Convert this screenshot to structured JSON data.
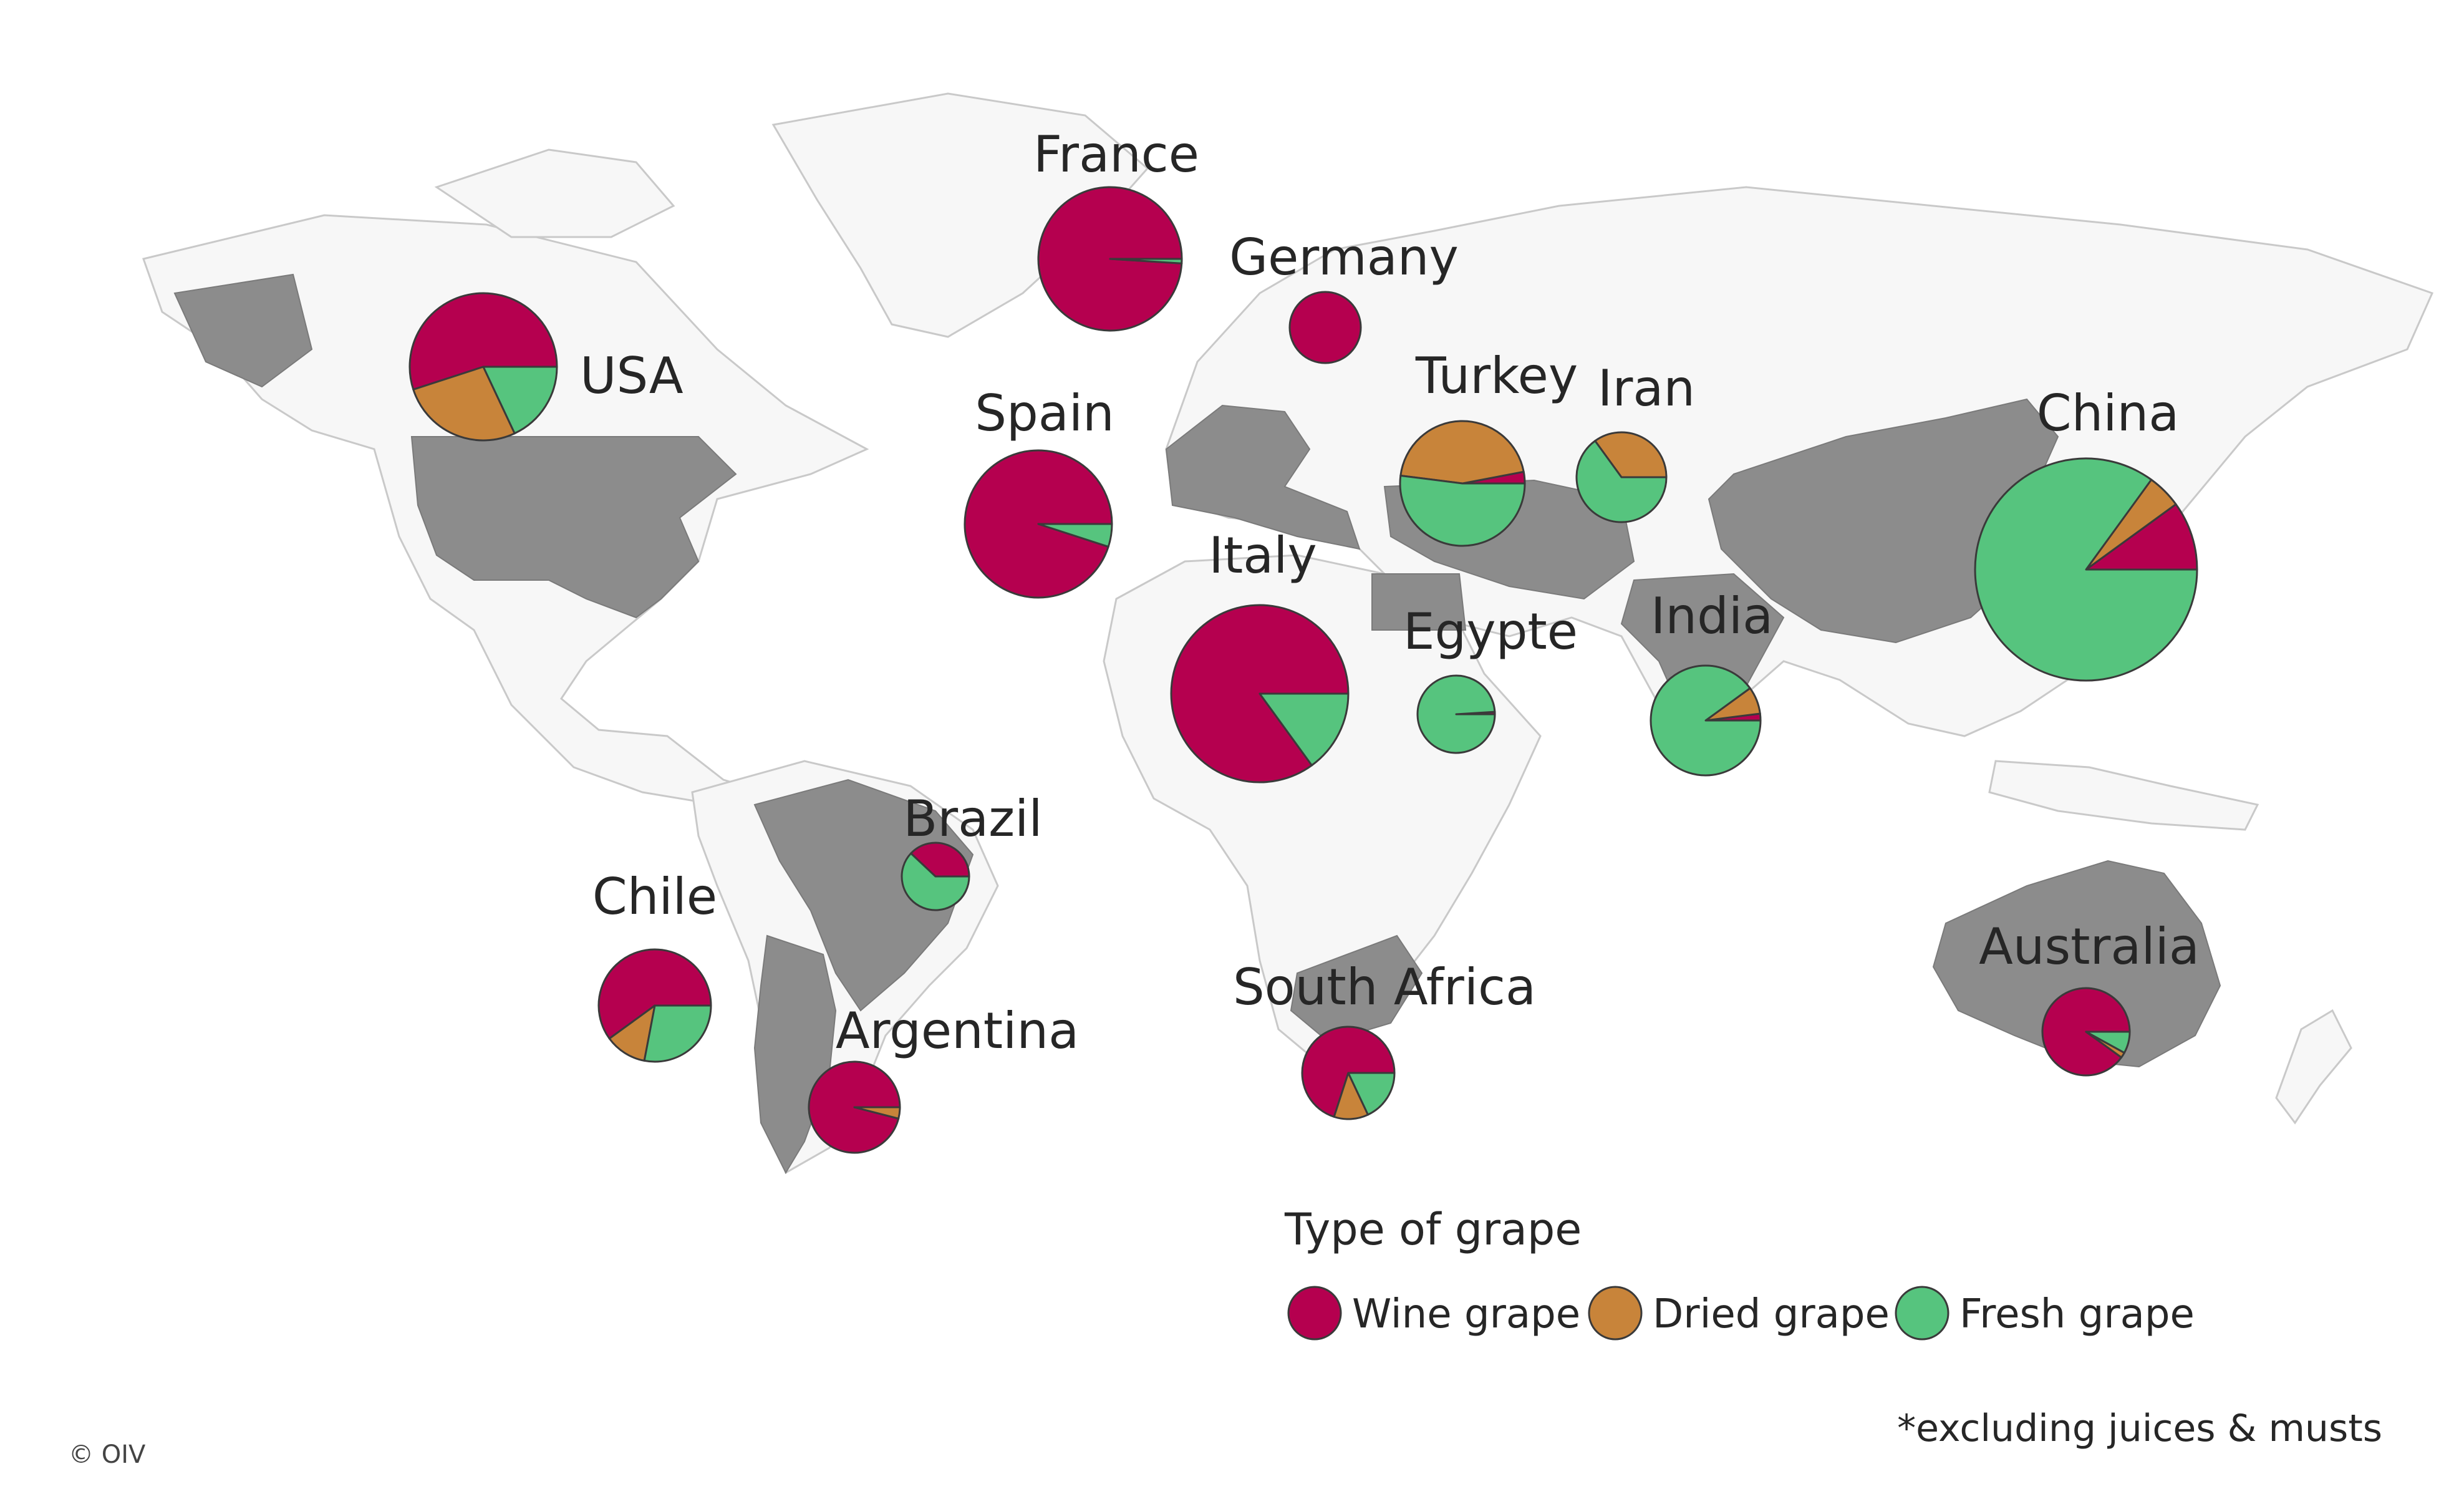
{
  "colors": {
    "wine": "#b5004f",
    "dried": "#c8843a",
    "fresh": "#56c47e",
    "land": "#f7f7f7",
    "land_highlight": "#8c8c8c"
  },
  "legend": {
    "title": "Type of grape",
    "items": [
      {
        "key": "wine",
        "label": "Wine grape"
      },
      {
        "key": "dried",
        "label": "Dried grape"
      },
      {
        "key": "fresh",
        "label": "Fresh grape"
      }
    ]
  },
  "footnote": "*excluding juices & musts",
  "credit": "© OIV",
  "chart_data": {
    "type": "pie",
    "series_keys": [
      "wine",
      "dried",
      "fresh"
    ],
    "countries": [
      {
        "name": "France",
        "wine": 99,
        "dried": 0,
        "fresh": 1
      },
      {
        "name": "Germany",
        "wine": 100,
        "dried": 0,
        "fresh": 0
      },
      {
        "name": "USA",
        "wine": 55,
        "dried": 27,
        "fresh": 18
      },
      {
        "name": "Spain",
        "wine": 95,
        "dried": 0,
        "fresh": 5
      },
      {
        "name": "Italy",
        "wine": 85,
        "dried": 0,
        "fresh": 15
      },
      {
        "name": "Turkey",
        "wine": 3,
        "dried": 45,
        "fresh": 52
      },
      {
        "name": "Iran",
        "wine": 0,
        "dried": 35,
        "fresh": 65
      },
      {
        "name": "China",
        "wine": 10,
        "dried": 5,
        "fresh": 85
      },
      {
        "name": "Egypte",
        "wine": 1,
        "dried": 0,
        "fresh": 99
      },
      {
        "name": "India",
        "wine": 2,
        "dried": 8,
        "fresh": 90
      },
      {
        "name": "Brazil",
        "wine": 38,
        "dried": 0,
        "fresh": 62
      },
      {
        "name": "Chile",
        "wine": 60,
        "dried": 12,
        "fresh": 28
      },
      {
        "name": "Argentina",
        "wine": 96,
        "dried": 4,
        "fresh": 0
      },
      {
        "name": "South Africa",
        "wine": 70,
        "dried": 12,
        "fresh": 18
      },
      {
        "name": "Australia",
        "wine": 90,
        "dried": 2,
        "fresh": 8
      }
    ]
  }
}
